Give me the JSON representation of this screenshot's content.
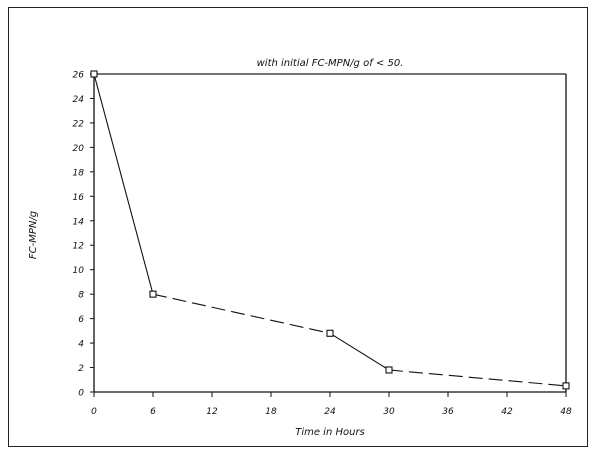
{
  "chart_data": {
    "type": "line",
    "title": "with initial FC-MPN/g of < 50.",
    "xlabel": "Time in Hours",
    "ylabel": "FC-MPN/g",
    "xlim": [
      0,
      48
    ],
    "ylim": [
      0,
      26
    ],
    "xticks": [
      0,
      6,
      12,
      18,
      24,
      30,
      36,
      42,
      48
    ],
    "yticks": [
      0,
      2,
      4,
      6,
      8,
      10,
      12,
      14,
      16,
      18,
      20,
      22,
      24,
      26
    ],
    "grid": false,
    "marker": "square",
    "x": [
      0,
      6,
      24,
      30,
      48
    ],
    "y": [
      26,
      8,
      4.8,
      1.8,
      0.5
    ],
    "segment_styles": [
      "solid",
      "dashed",
      "solid",
      "dashed"
    ],
    "colors": {
      "line": "#111111",
      "background": "#ffffff"
    }
  }
}
